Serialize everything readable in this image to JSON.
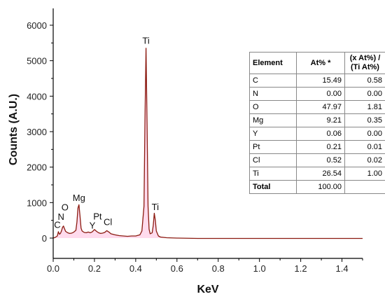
{
  "chart_data": {
    "type": "line",
    "xlabel": "KeV",
    "ylabel": "Counts (A.U.)",
    "xlim": [
      0.0,
      1.5
    ],
    "ylim": [
      -300,
      6500
    ],
    "xticks": [
      "0.0",
      "0.2",
      "0.4",
      "0.6",
      "0.8",
      "1.0",
      "1.2",
      "1.4"
    ],
    "yticks": [
      "0",
      "1000",
      "2000",
      "3000",
      "4000",
      "5000",
      "6000"
    ],
    "grid": false,
    "line_color": "#8b1a10",
    "fill_color": "#ff99cc",
    "series": [
      {
        "x": [
          0.0,
          0.01,
          0.02,
          0.025,
          0.03,
          0.035,
          0.04,
          0.045,
          0.05,
          0.055,
          0.06,
          0.07,
          0.08,
          0.09,
          0.1,
          0.11,
          0.115,
          0.12,
          0.125,
          0.13,
          0.135,
          0.14,
          0.15,
          0.16,
          0.17,
          0.18,
          0.19,
          0.2,
          0.21,
          0.22,
          0.23,
          0.24,
          0.25,
          0.26,
          0.27,
          0.28,
          0.3,
          0.32,
          0.34,
          0.36,
          0.38,
          0.4,
          0.42,
          0.43,
          0.44,
          0.445,
          0.45,
          0.455,
          0.46,
          0.465,
          0.47,
          0.48,
          0.485,
          0.49,
          0.495,
          0.5,
          0.51,
          0.52,
          0.55,
          0.6,
          0.7,
          0.8,
          0.9,
          1.0,
          1.1,
          1.2,
          1.3,
          1.4,
          1.5
        ],
        "y": [
          0,
          20,
          60,
          180,
          110,
          130,
          200,
          300,
          340,
          260,
          190,
          150,
          130,
          140,
          170,
          220,
          450,
          850,
          940,
          620,
          280,
          200,
          160,
          150,
          170,
          150,
          180,
          240,
          190,
          150,
          130,
          140,
          160,
          210,
          170,
          120,
          90,
          70,
          60,
          50,
          60,
          60,
          90,
          200,
          900,
          3300,
          5350,
          3200,
          900,
          250,
          120,
          150,
          350,
          700,
          500,
          200,
          60,
          30,
          10,
          0,
          -10,
          -10,
          -10,
          -10,
          -10,
          -10,
          -10,
          -10,
          -10
        ]
      }
    ],
    "peak_labels": [
      {
        "text": "C",
        "x": 0.02,
        "y": 290
      },
      {
        "text": "N",
        "x": 0.038,
        "y": 510
      },
      {
        "text": "O",
        "x": 0.057,
        "y": 780
      },
      {
        "text": "Mg",
        "x": 0.125,
        "y": 1050
      },
      {
        "text": "Y",
        "x": 0.19,
        "y": 270
      },
      {
        "text": "Pt",
        "x": 0.215,
        "y": 520
      },
      {
        "text": "Cl",
        "x": 0.265,
        "y": 370
      },
      {
        "text": "Ti",
        "x": 0.45,
        "y": 5480
      },
      {
        "text": "Ti",
        "x": 0.495,
        "y": 790
      }
    ],
    "table": {
      "headers": [
        "Element",
        "At% *",
        "(x At%) /",
        "(Ti At%)"
      ],
      "rows": [
        [
          "C",
          "15.49",
          "0.58"
        ],
        [
          "N",
          "0.00",
          "0.00"
        ],
        [
          "O",
          "47.97",
          "1.81"
        ],
        [
          "Mg",
          "9.21",
          "0.35"
        ],
        [
          "Y",
          "0.06",
          "0.00"
        ],
        [
          "Pt",
          "0.21",
          "0.01"
        ],
        [
          "Cl",
          "0.52",
          "0.02"
        ],
        [
          "Ti",
          "26.54",
          "1.00"
        ]
      ],
      "total": [
        "Total",
        "100.00",
        ""
      ]
    }
  }
}
